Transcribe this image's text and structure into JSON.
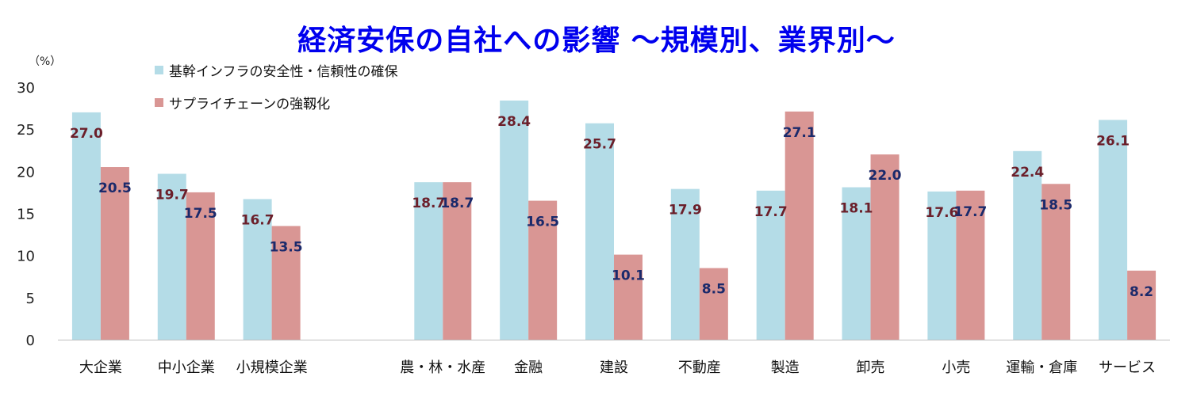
{
  "chart_data": {
    "type": "bar",
    "title": "経済安保の自社への影響 ～規模別、業界別～",
    "ylabel": "（%）",
    "ylim": [
      0,
      30
    ],
    "yticks": [
      0,
      5,
      10,
      15,
      20,
      25,
      30
    ],
    "grid": false,
    "legend_position": "top-left",
    "categories": [
      "大企業",
      "中小企業",
      "小規模企業",
      "",
      "農・林・水産",
      "金融",
      "建設",
      "不動産",
      "製造",
      "卸売",
      "小売",
      "運輸・倉庫",
      "サービス"
    ],
    "series": [
      {
        "name": "基幹インフラの安全性・信頼性の確保",
        "color": "#b4dce7",
        "label_color": "#6b1f2a",
        "values": [
          27.0,
          19.7,
          16.7,
          null,
          18.7,
          28.4,
          25.7,
          17.9,
          17.7,
          18.1,
          17.6,
          22.4,
          26.1
        ],
        "labels": [
          "27.0",
          "19.7",
          "16.7",
          "",
          "18.7",
          "28.4",
          "25.7",
          "17.9",
          "17.7",
          "18.1",
          "17.6",
          "22.4",
          "26.1"
        ]
      },
      {
        "name": "サプライチェーンの強靱化",
        "color": "#d99694",
        "label_color": "#1b2a6b",
        "values": [
          20.5,
          17.5,
          13.5,
          null,
          18.7,
          16.5,
          10.1,
          8.5,
          27.1,
          22.0,
          17.7,
          18.5,
          8.2
        ],
        "labels": [
          "20.5",
          "17.5",
          "13.5",
          "",
          "18.7",
          "16.5",
          "10.1",
          "8.5",
          "27.1",
          "22.0",
          "17.7",
          "18.5",
          "8.2"
        ]
      }
    ]
  }
}
